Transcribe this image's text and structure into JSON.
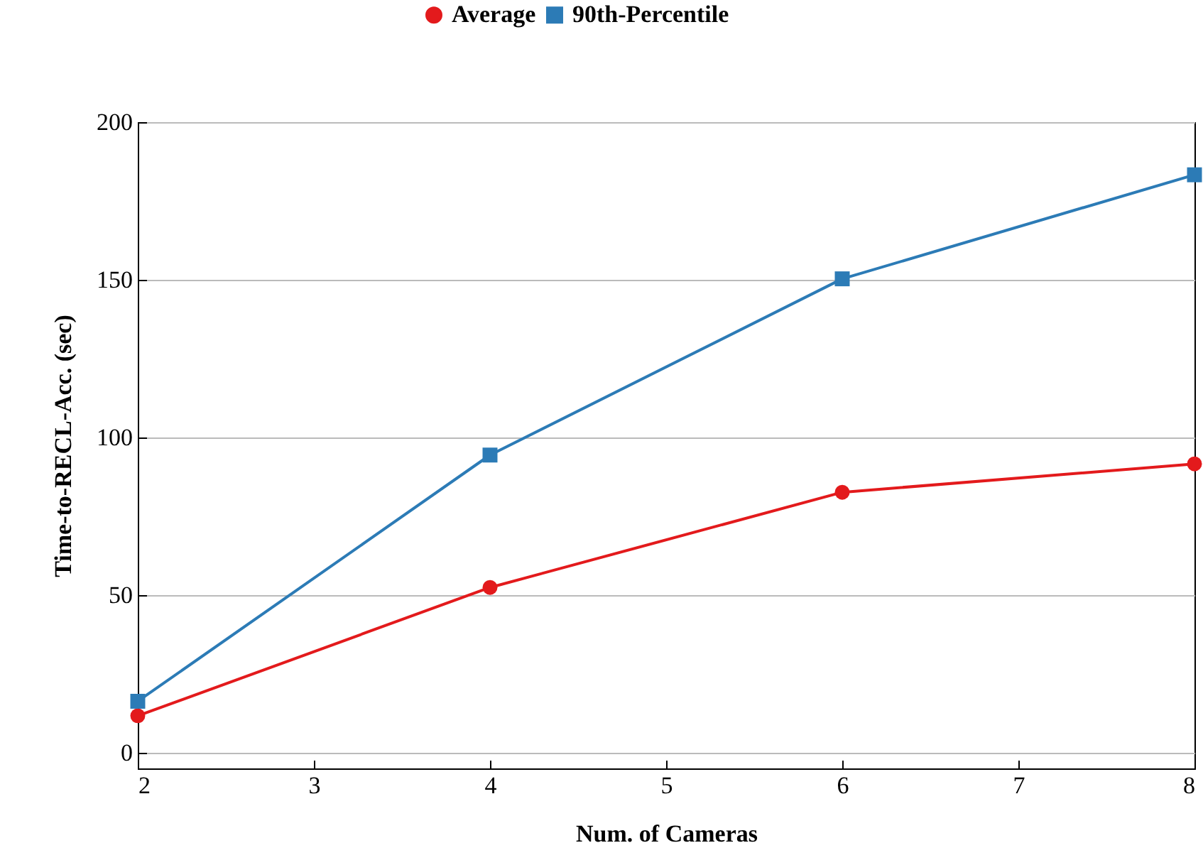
{
  "chart_data": {
    "type": "line",
    "xlabel": "Num. of Cameras",
    "ylabel": "Time-to-RECL-Acc. (sec)",
    "x": [
      2,
      4,
      6,
      8
    ],
    "series": [
      {
        "name": "Average",
        "color": "#e31a1c",
        "marker": "circle",
        "values": [
          11.7,
          52.4,
          82.6,
          91.6
        ]
      },
      {
        "name": "90th-Percentile",
        "color": "#2c7bb6",
        "marker": "square",
        "values": [
          16.3,
          94.4,
          150.3,
          183.3
        ]
      }
    ],
    "xlim": [
      2,
      8
    ],
    "xticks": [
      2,
      3,
      4,
      5,
      6,
      7,
      8
    ],
    "ylim": [
      -5,
      200
    ],
    "yticks": [
      0,
      50,
      100,
      150,
      200
    ],
    "grid": "y",
    "legend": "top",
    "line_style": "solid"
  }
}
